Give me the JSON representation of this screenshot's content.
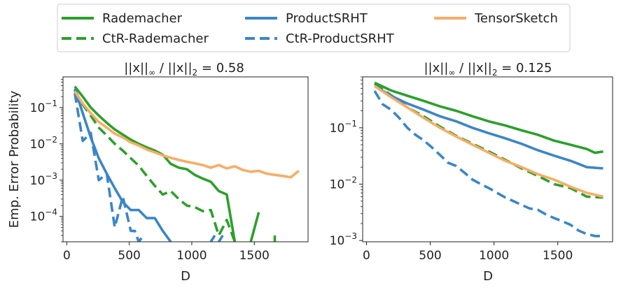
{
  "chart_data": [
    {
      "type": "line",
      "title_parts": [
        "||x||",
        "∞",
        " / ||x||",
        "2",
        " = 0.58"
      ],
      "xlabel": "D",
      "ylabel": "Emp. Error Probability",
      "yscale": "log",
      "xlim": [
        -30,
        1930
      ],
      "ylim": [
        2e-05,
        0.7
      ],
      "xticks": [
        0,
        500,
        1000,
        1500
      ],
      "xtick_labels": [
        "0",
        "500",
        "1000",
        "1500"
      ],
      "yticks": [
        0.0001,
        0.001,
        0.01,
        0.1
      ],
      "ytick_base": "10",
      "ytick_exponents": [
        "−4",
        "−3",
        "−2",
        "−1"
      ],
      "series": [
        {
          "name": "Rademacher",
          "color": "#2ca02c",
          "dash": "solid",
          "segments": [
            [
              [
                64,
                0.38
              ],
              [
                128,
                0.2
              ],
              [
                192,
                0.1
              ],
              [
                256,
                0.06
              ],
              [
                320,
                0.038
              ],
              [
                384,
                0.025
              ],
              [
                448,
                0.018
              ],
              [
                512,
                0.013
              ],
              [
                576,
                0.01
              ],
              [
                640,
                0.008
              ],
              [
                704,
                0.0065
              ],
              [
                768,
                0.005
              ],
              [
                832,
                0.0028
              ],
              [
                896,
                0.0022
              ],
              [
                960,
                0.002
              ],
              [
                1024,
                0.0014
              ],
              [
                1088,
                0.0011
              ],
              [
                1152,
                0.0009
              ],
              [
                1216,
                0.0005
              ],
              [
                1280,
                0.0004
              ],
              [
                1344,
                2e-05
              ]
            ],
            [
              [
                1472,
                2e-05
              ],
              [
                1536,
                0.00013
              ]
            ],
            [
              [
                1664,
                2e-05
              ],
              [
                1664,
                3e-05
              ]
            ]
          ]
        },
        {
          "name": "CtR-Rademacher",
          "color": "#2ca02c",
          "dash": "dashed",
          "segments": [
            [
              [
                64,
                0.3
              ],
              [
                128,
                0.12
              ],
              [
                192,
                0.06
              ],
              [
                256,
                0.028
              ],
              [
                320,
                0.017
              ],
              [
                384,
                0.01
              ],
              [
                448,
                0.0065
              ],
              [
                512,
                0.004
              ],
              [
                576,
                0.0025
              ],
              [
                640,
                0.0013
              ],
              [
                704,
                0.0007
              ],
              [
                768,
                0.0004
              ],
              [
                832,
                0.0005
              ],
              [
                896,
                0.0003
              ],
              [
                960,
                0.0002
              ],
              [
                1024,
                0.00018
              ],
              [
                1088,
                0.00014
              ],
              [
                1152,
                0.00015
              ],
              [
                1216,
                3e-05
              ],
              [
                1280,
                8e-05
              ],
              [
                1344,
                2e-05
              ]
            ]
          ]
        },
        {
          "name": "ProductSRHT",
          "color": "#3a86c8",
          "dash": "solid",
          "segments": [
            [
              [
                64,
                0.33
              ],
              [
                128,
                0.07
              ],
              [
                192,
                0.015
              ],
              [
                256,
                0.004
              ],
              [
                320,
                0.0015
              ],
              [
                384,
                0.0006
              ],
              [
                448,
                0.00025
              ],
              [
                512,
                0.00015
              ],
              [
                576,
                0.00015
              ],
              [
                640,
                9e-05
              ],
              [
                704,
                9e-05
              ],
              [
                768,
                4e-05
              ],
              [
                832,
                2e-05
              ]
            ],
            [
              [
                1152,
                2e-05
              ],
              [
                1184,
                3e-05
              ]
            ],
            [
              [
                1216,
                2e-05
              ],
              [
                1248,
                3e-05
              ]
            ]
          ]
        },
        {
          "name": "CtR-ProductSRHT",
          "color": "#3a86c8",
          "dash": "dashed",
          "segments": [
            [
              [
                64,
                0.25
              ],
              [
                128,
                0.012
              ],
              [
                192,
                0.02
              ],
              [
                256,
                0.001
              ],
              [
                320,
                0.0015
              ],
              [
                384,
                5e-05
              ],
              [
                448,
                0.00035
              ],
              [
                512,
                4e-05
              ],
              [
                544,
                4e-05
              ],
              [
                576,
                2e-05
              ],
              [
                608,
                2.8e-05
              ]
            ]
          ]
        },
        {
          "name": "TensorSketch",
          "color": "#f8ac65",
          "dash": "solid",
          "segments": [
            [
              [
                64,
                0.28
              ],
              [
                128,
                0.13
              ],
              [
                192,
                0.07
              ],
              [
                256,
                0.04
              ],
              [
                320,
                0.028
              ],
              [
                384,
                0.019
              ],
              [
                448,
                0.015
              ],
              [
                512,
                0.011
              ],
              [
                576,
                0.009
              ],
              [
                640,
                0.007
              ],
              [
                704,
                0.0058
              ],
              [
                768,
                0.0048
              ],
              [
                832,
                0.0041
              ],
              [
                896,
                0.0036
              ],
              [
                960,
                0.0032
              ],
              [
                1024,
                0.0029
              ],
              [
                1088,
                0.0026
              ],
              [
                1152,
                0.0022
              ],
              [
                1216,
                0.0026
              ],
              [
                1280,
                0.0021
              ],
              [
                1344,
                0.0024
              ],
              [
                1408,
                0.0019
              ],
              [
                1472,
                0.0017
              ],
              [
                1536,
                0.0018
              ],
              [
                1600,
                0.0015
              ],
              [
                1664,
                0.0014
              ],
              [
                1728,
                0.0013
              ],
              [
                1792,
                0.0012
              ],
              [
                1856,
                0.0018
              ]
            ]
          ]
        }
      ]
    },
    {
      "type": "line",
      "title_parts": [
        "||x||",
        "∞",
        " / ||x||",
        "2",
        " = 0.125"
      ],
      "xlabel": "D",
      "ylabel": "",
      "yscale": "log",
      "xlim": [
        -30,
        1930
      ],
      "ylim": [
        0.00095,
        0.8
      ],
      "xticks": [
        0,
        500,
        1000,
        1500
      ],
      "xtick_labels": [
        "0",
        "500",
        "1000",
        "1500"
      ],
      "yticks": [
        0.001,
        0.01,
        0.1
      ],
      "ytick_base": "10",
      "ytick_exponents": [
        "−3",
        "−2",
        "−1"
      ],
      "series": [
        {
          "name": "Rademacher",
          "color": "#2ca02c",
          "dash": "solid",
          "segments": [
            [
              [
                64,
                0.63
              ],
              [
                192,
                0.46
              ],
              [
                320,
                0.37
              ],
              [
                448,
                0.3
              ],
              [
                576,
                0.24
              ],
              [
                704,
                0.2
              ],
              [
                832,
                0.16
              ],
              [
                960,
                0.13
              ],
              [
                1088,
                0.11
              ],
              [
                1216,
                0.09
              ],
              [
                1344,
                0.075
              ],
              [
                1472,
                0.059
              ],
              [
                1600,
                0.05
              ],
              [
                1728,
                0.042
              ],
              [
                1792,
                0.036
              ],
              [
                1856,
                0.038
              ]
            ]
          ]
        },
        {
          "name": "CtR-Rademacher",
          "color": "#2ca02c",
          "dash": "dashed",
          "segments": [
            [
              [
                64,
                0.6
              ],
              [
                192,
                0.38
              ],
              [
                320,
                0.23
              ],
              [
                448,
                0.16
              ],
              [
                576,
                0.105
              ],
              [
                704,
                0.072
              ],
              [
                832,
                0.052
              ],
              [
                960,
                0.038
              ],
              [
                1088,
                0.027
              ],
              [
                1216,
                0.019
              ],
              [
                1344,
                0.014
              ],
              [
                1472,
                0.01
              ],
              [
                1600,
                0.0085
              ],
              [
                1728,
                0.006
              ],
              [
                1856,
                0.0058
              ]
            ]
          ]
        },
        {
          "name": "ProductSRHT",
          "color": "#3a86c8",
          "dash": "solid",
          "segments": [
            [
              [
                64,
                0.55
              ],
              [
                192,
                0.37
              ],
              [
                320,
                0.27
              ],
              [
                448,
                0.21
              ],
              [
                576,
                0.16
              ],
              [
                704,
                0.13
              ],
              [
                832,
                0.1
              ],
              [
                960,
                0.08
              ],
              [
                1088,
                0.065
              ],
              [
                1216,
                0.052
              ],
              [
                1344,
                0.04
              ],
              [
                1472,
                0.032
              ],
              [
                1600,
                0.026
              ],
              [
                1728,
                0.02
              ],
              [
                1856,
                0.019
              ]
            ]
          ]
        },
        {
          "name": "CtR-ProductSRHT",
          "color": "#3a86c8",
          "dash": "dashed",
          "segments": [
            [
              [
                64,
                0.45
              ],
              [
                128,
                0.26
              ],
              [
                192,
                0.21
              ],
              [
                256,
                0.15
              ],
              [
                320,
                0.1
              ],
              [
                384,
                0.075
              ],
              [
                448,
                0.06
              ],
              [
                512,
                0.045
              ],
              [
                576,
                0.033
              ],
              [
                640,
                0.024
              ],
              [
                704,
                0.021
              ],
              [
                768,
                0.016
              ],
              [
                832,
                0.012
              ],
              [
                896,
                0.01
              ],
              [
                960,
                0.0085
              ],
              [
                1024,
                0.007
              ],
              [
                1088,
                0.0058
              ],
              [
                1152,
                0.005
              ],
              [
                1216,
                0.0043
              ],
              [
                1280,
                0.0037
              ],
              [
                1344,
                0.0035
              ],
              [
                1408,
                0.0029
              ],
              [
                1472,
                0.0025
              ],
              [
                1536,
                0.0022
              ],
              [
                1600,
                0.0019
              ],
              [
                1664,
                0.0015
              ],
              [
                1728,
                0.0013
              ],
              [
                1792,
                0.0012
              ],
              [
                1856,
                0.0012
              ]
            ]
          ]
        },
        {
          "name": "TensorSketch",
          "color": "#f8ac65",
          "dash": "solid",
          "segments": [
            [
              [
                64,
                0.55
              ],
              [
                192,
                0.35
              ],
              [
                320,
                0.23
              ],
              [
                448,
                0.15
              ],
              [
                576,
                0.1
              ],
              [
                704,
                0.07
              ],
              [
                832,
                0.05
              ],
              [
                960,
                0.036
              ],
              [
                1088,
                0.026
              ],
              [
                1216,
                0.02
              ],
              [
                1344,
                0.015
              ],
              [
                1472,
                0.012
              ],
              [
                1600,
                0.009
              ],
              [
                1728,
                0.007
              ],
              [
                1856,
                0.006
              ]
            ]
          ]
        }
      ]
    }
  ],
  "legend": {
    "location": "top-center",
    "items": [
      {
        "label": "Rademacher",
        "color": "#2ca02c",
        "dash": "solid"
      },
      {
        "label": "CtR-Rademacher",
        "color": "#2ca02c",
        "dash": "dashed"
      },
      {
        "label": "ProductSRHT",
        "color": "#3a86c8",
        "dash": "solid"
      },
      {
        "label": "CtR-ProductSRHT",
        "color": "#3a86c8",
        "dash": "dashed"
      },
      {
        "label": "TensorSketch",
        "color": "#f8ac65",
        "dash": "solid"
      }
    ]
  }
}
